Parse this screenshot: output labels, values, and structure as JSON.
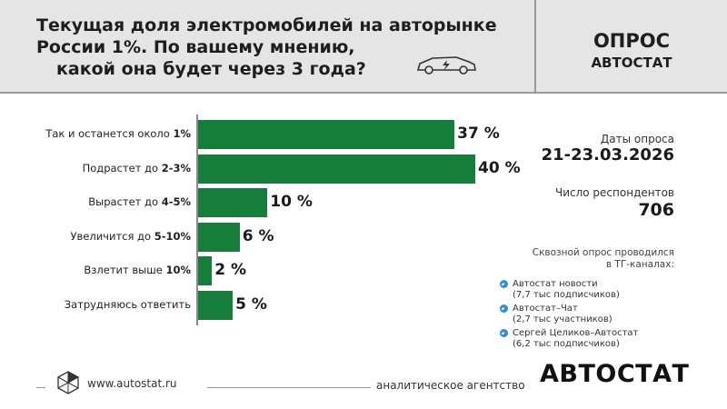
{
  "header": {
    "title_lines": [
      "Текущая доля электромобилей на авторынке",
      "России 1%. По вашему мнению,",
      "какой она будет через 3 года?"
    ],
    "poll_title": "ОПРОС",
    "poll_subtitle": "АВТОСТАТ",
    "car_icon": "electric-car-icon"
  },
  "chart_data": {
    "type": "bar",
    "orientation": "horizontal",
    "categories": [
      {
        "text": "Так и останется около ",
        "bold": "1%"
      },
      {
        "text": "Подрастет до ",
        "bold": "2-3%"
      },
      {
        "text": "Вырастет до ",
        "bold": "4-5%"
      },
      {
        "text": "Увеличится до ",
        "bold": "5-10%"
      },
      {
        "text": "Взлетит выше ",
        "bold": "10%"
      },
      {
        "text": "Затрудняюсь ответить",
        "bold": ""
      }
    ],
    "values": [
      37,
      40,
      10,
      6,
      2,
      5
    ],
    "value_labels": [
      "37 %",
      "40 %",
      "10 %",
      "6 %",
      "2 %",
      "5 %"
    ],
    "bar_color": "#177d3b",
    "xlim": [
      0,
      40
    ]
  },
  "info": {
    "dates_caption": "Даты опроса",
    "dates_value": "21-23.03.2026",
    "respondents_caption": "Число респондентов",
    "respondents_value": "706",
    "source_caption_lines": [
      "Сквозной опрос проводился",
      "в ТГ-каналах:"
    ],
    "channels": [
      {
        "name": "Автостат новости",
        "sub": "(7,7 тыс подписчиков)"
      },
      {
        "name": "Автостат–Чат",
        "sub": "(2,7 тыс участников)"
      },
      {
        "name": "Сергей Целиков–Автостат",
        "sub": "(6,2  тыс подписчиков)"
      }
    ],
    "channel_icon": "telegram-icon",
    "channel_icon_color": "#2c8fd8"
  },
  "footer": {
    "site": "www.autostat.ru",
    "agency": "аналитическое агентство",
    "brand": "АВТОСТАТ",
    "logo_icon": "autostat-logo-icon"
  }
}
